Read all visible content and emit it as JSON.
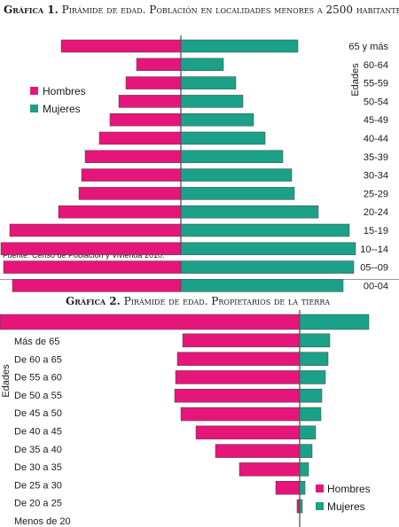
{
  "chart1": {
    "title_prefix": "Gráfica 1.",
    "title_text": "Pirámide de edad. Población en localidades menores a 2500 habitantes",
    "source": "Fuente: Censo de Población y Vivienda 2010.",
    "ylabel": "Edades",
    "legend": {
      "men": "Hombres",
      "women": "Mujeres"
    },
    "colors": {
      "men": "#e6157a",
      "women": "#1aa188"
    }
  },
  "chart2": {
    "title_prefix": "Gráfica 2.",
    "title_text": "Pirámide de edad. Propietarios de la tierra",
    "ylabel": "Edades",
    "legend": {
      "men": "Hombres",
      "women": "Mujeres"
    },
    "colors": {
      "men": "#e6157a",
      "women": "#1aa188"
    }
  },
  "chart_data": [
    {
      "type": "bar",
      "orientation": "horizontal-pyramid",
      "title": "Gráfica 1. Pirámide de edad. Población en localidades menores a 2500 habitantes",
      "ylabel": "Edades",
      "categories": [
        "65  y más",
        "60-64",
        "55-59",
        "50-54",
        "45-49",
        "40-44",
        "35-39",
        "30-34",
        "25-29",
        "20-24",
        "15-19",
        "10--14",
        "05--09",
        "00-04"
      ],
      "series": [
        {
          "name": "Hombres",
          "values": [
            135,
            50,
            62,
            70,
            80,
            92,
            108,
            112,
            115,
            138,
            193,
            203,
            200,
            190
          ]
        },
        {
          "name": "Mujeres",
          "values": [
            132,
            48,
            62,
            70,
            82,
            95,
            115,
            125,
            128,
            155,
            190,
            197,
            195,
            183
          ]
        }
      ],
      "legend": "left"
    },
    {
      "type": "bar",
      "orientation": "horizontal-pyramid",
      "title": "Gráfica 2. Pirámide de edad. Propietarios de la tierra",
      "ylabel": "Edades",
      "categories": [
        "Más de 65",
        "De 60 a 65",
        "De 55 a 60",
        "De 50 a 55",
        "De 45 a 50",
        "De 40 a 45",
        "De 35 a 40",
        "De 30 a 35",
        "De 25 a 30",
        "De 20 a 25",
        "Menos de 20"
      ],
      "series": [
        {
          "name": "Hombres",
          "values": [
            338,
            132,
            138,
            140,
            141,
            134,
            117,
            95,
            68,
            27,
            3
          ]
        },
        {
          "name": "Mujeres",
          "values": [
            78,
            34,
            32,
            29,
            25,
            24,
            18,
            14,
            10,
            6,
            3
          ]
        }
      ],
      "legend": "bottom-right"
    }
  ]
}
